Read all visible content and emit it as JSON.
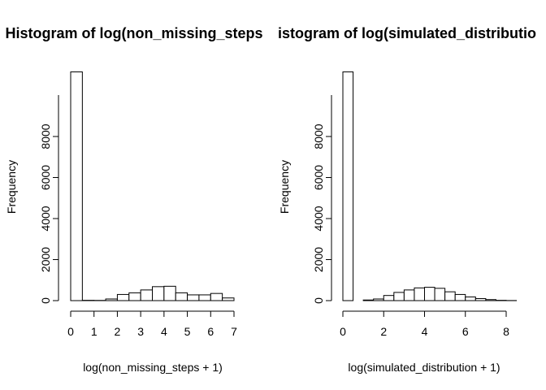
{
  "chart_data": [
    {
      "type": "bar",
      "title": "Histogram of log(non_missing_steps",
      "xlabel": "log(non_missing_steps + 1)",
      "ylabel": "Frequency",
      "xlim": [
        0,
        7
      ],
      "ylim": [
        0,
        11000
      ],
      "x_ticks": [
        0,
        1,
        2,
        3,
        4,
        5,
        6,
        7
      ],
      "y_ticks": [
        0,
        2000,
        4000,
        6000,
        8000
      ],
      "grid": false,
      "bin_edges": [
        0,
        0.5,
        1,
        1.5,
        2,
        2.5,
        3,
        3.5,
        4,
        4.5,
        5,
        5.5,
        6,
        6.5,
        7
      ],
      "values": [
        11150,
        15,
        10,
        80,
        300,
        380,
        520,
        680,
        700,
        380,
        280,
        280,
        350,
        130
      ]
    },
    {
      "type": "bar",
      "title": "istogram of log(simulated_distributio",
      "xlabel": "log(simulated_distribution + 1)",
      "ylabel": "Frequency",
      "xlim": [
        0,
        8
      ],
      "ylim": [
        0,
        11000
      ],
      "x_ticks": [
        0,
        2,
        4,
        6,
        8
      ],
      "y_ticks": [
        0,
        2000,
        4000,
        6000,
        8000
      ],
      "grid": false,
      "bin_edges": [
        0,
        0.5,
        1,
        1.5,
        2,
        2.5,
        3,
        3.5,
        4,
        4.5,
        5,
        5.5,
        6,
        6.5,
        7,
        7.5,
        8,
        8.5
      ],
      "values": [
        11150,
        0,
        30,
        80,
        250,
        400,
        520,
        620,
        650,
        600,
        430,
        300,
        180,
        100,
        50,
        15,
        5
      ]
    }
  ]
}
